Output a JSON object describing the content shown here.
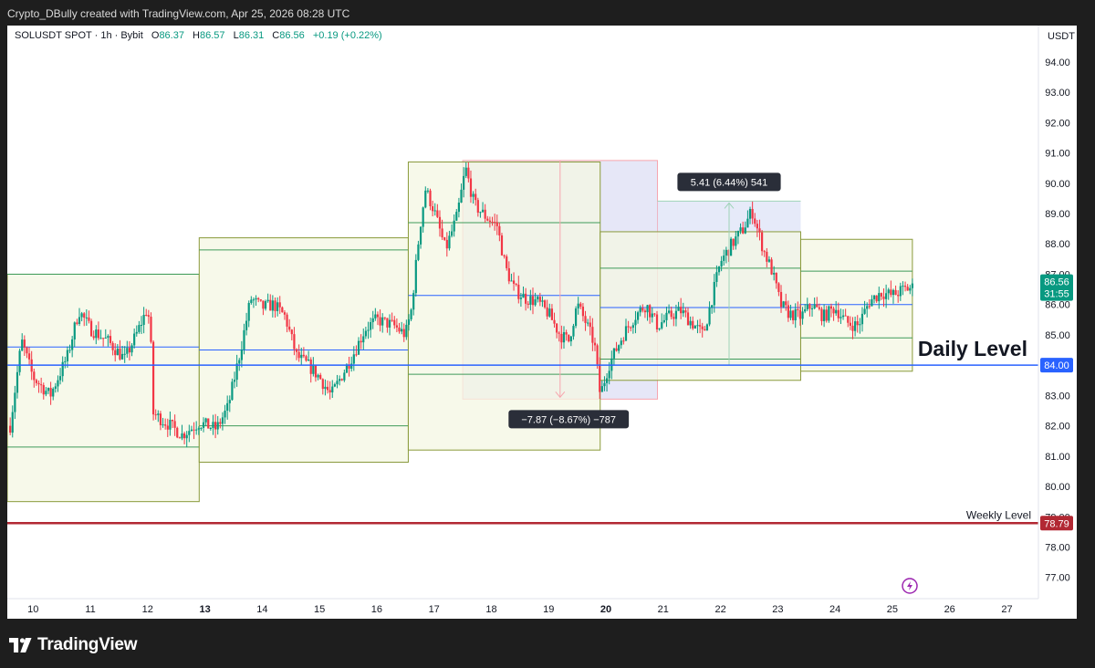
{
  "header": {
    "attribution": "Crypto_DBully created with TradingView.com, Apr 25, 2026 08:28 UTC"
  },
  "legend": {
    "symbol": "SOLUSDT SPOT · 1h · Bybit",
    "open_label": "O",
    "open": "86.37",
    "high_label": "H",
    "high": "86.57",
    "low_label": "L",
    "low": "86.31",
    "close_label": "C",
    "close": "86.56",
    "change": "+0.19 (+0.22%)"
  },
  "footer": {
    "brand": "TradingView"
  },
  "colors": {
    "up": "#089981",
    "down": "#f23645",
    "daily_level": "#2962ff",
    "weekly_level": "#b22833",
    "basis": "#2962ff",
    "band": "#8a9a3b",
    "short_box": "#d1d4f0",
    "long_box": "#d6dcf5"
  },
  "chart_data": {
    "type": "candlestick",
    "currency_label": "USDT",
    "y_ticks": [
      "94.00",
      "93.00",
      "92.00",
      "91.00",
      "90.00",
      "89.00",
      "88.00",
      "87.00",
      "86.00",
      "85.00",
      "84.00",
      "83.00",
      "82.00",
      "81.00",
      "80.00",
      "79.00",
      "78.00",
      "77.00"
    ],
    "ylim": [
      76.3,
      95.2
    ],
    "x_ticks": [
      {
        "day": 10,
        "label": "10"
      },
      {
        "day": 11,
        "label": "11"
      },
      {
        "day": 12,
        "label": "12"
      },
      {
        "day": 13,
        "label": "13",
        "bold": true
      },
      {
        "day": 14,
        "label": "14"
      },
      {
        "day": 15,
        "label": "15"
      },
      {
        "day": 16,
        "label": "16"
      },
      {
        "day": 17,
        "label": "17"
      },
      {
        "day": 18,
        "label": "18"
      },
      {
        "day": 19,
        "label": "19"
      },
      {
        "day": 20,
        "label": "20",
        "bold": true
      },
      {
        "day": 21,
        "label": "21"
      },
      {
        "day": 22,
        "label": "22"
      },
      {
        "day": 23,
        "label": "23"
      },
      {
        "day": 24,
        "label": "24"
      },
      {
        "day": 25,
        "label": "25"
      },
      {
        "day": 26,
        "label": "26"
      },
      {
        "day": 27,
        "label": "27"
      }
    ],
    "xlim": [
      9.55,
      27.55
    ],
    "price_path": [
      [
        9.6,
        82.0
      ],
      [
        9.8,
        84.8
      ],
      [
        10.0,
        83.6
      ],
      [
        10.3,
        83.0
      ],
      [
        10.6,
        84.3
      ],
      [
        10.8,
        85.8
      ],
      [
        11.0,
        85.2
      ],
      [
        11.3,
        84.8
      ],
      [
        11.6,
        84.2
      ],
      [
        11.8,
        85.0
      ],
      [
        12.0,
        85.9
      ],
      [
        12.05,
        85.0
      ],
      [
        12.1,
        82.4
      ],
      [
        12.4,
        82.0
      ],
      [
        12.6,
        81.7
      ],
      [
        12.9,
        82.1
      ],
      [
        13.2,
        81.9
      ],
      [
        13.4,
        82.6
      ],
      [
        13.6,
        84.3
      ],
      [
        13.8,
        86.2
      ],
      [
        14.0,
        85.9
      ],
      [
        14.2,
        86.0
      ],
      [
        14.4,
        85.6
      ],
      [
        14.6,
        84.3
      ],
      [
        14.8,
        84.0
      ],
      [
        15.0,
        83.6
      ],
      [
        15.2,
        83.0
      ],
      [
        15.4,
        83.7
      ],
      [
        15.6,
        84.4
      ],
      [
        15.8,
        85.2
      ],
      [
        16.0,
        85.5
      ],
      [
        16.3,
        85.3
      ],
      [
        16.5,
        85.0
      ],
      [
        16.6,
        85.8
      ],
      [
        16.75,
        88.5
      ],
      [
        16.85,
        89.8
      ],
      [
        17.0,
        89.1
      ],
      [
        17.2,
        87.8
      ],
      [
        17.4,
        88.9
      ],
      [
        17.55,
        90.5
      ],
      [
        17.7,
        89.3
      ],
      [
        17.9,
        88.9
      ],
      [
        18.1,
        88.6
      ],
      [
        18.25,
        87.2
      ],
      [
        18.4,
        86.5
      ],
      [
        18.6,
        86.2
      ],
      [
        18.8,
        86.1
      ],
      [
        19.0,
        85.7
      ],
      [
        19.2,
        85.0
      ],
      [
        19.35,
        84.8
      ],
      [
        19.5,
        86.0
      ],
      [
        19.65,
        85.4
      ],
      [
        19.8,
        84.7
      ],
      [
        19.9,
        83.0
      ],
      [
        20.05,
        84.0
      ],
      [
        20.3,
        85.0
      ],
      [
        20.5,
        85.6
      ],
      [
        20.7,
        86.0
      ],
      [
        20.9,
        85.3
      ],
      [
        21.1,
        85.6
      ],
      [
        21.3,
        85.8
      ],
      [
        21.5,
        85.4
      ],
      [
        21.7,
        85.0
      ],
      [
        21.85,
        86.2
      ],
      [
        22.0,
        87.4
      ],
      [
        22.2,
        88.0
      ],
      [
        22.4,
        88.5
      ],
      [
        22.55,
        89.1
      ],
      [
        22.75,
        87.8
      ],
      [
        22.9,
        87.1
      ],
      [
        23.05,
        86.0
      ],
      [
        23.2,
        85.7
      ],
      [
        23.4,
        85.6
      ],
      [
        23.6,
        86.0
      ],
      [
        23.8,
        85.6
      ],
      [
        24.0,
        85.9
      ],
      [
        24.2,
        85.4
      ],
      [
        24.4,
        85.3
      ],
      [
        24.6,
        86.1
      ],
      [
        24.8,
        86.4
      ],
      [
        25.0,
        86.3
      ],
      [
        25.2,
        86.5
      ],
      [
        25.35,
        86.56
      ]
    ],
    "bollinger_segments": [
      {
        "x": [
          9.55,
          12.9
        ],
        "upper": 87.0,
        "basis": 84.6,
        "lower": 81.3,
        "outer_upper": 87.0,
        "outer_lower": 79.5
      },
      {
        "x": [
          12.9,
          16.55
        ],
        "upper": 87.8,
        "basis": 84.5,
        "lower": 82.0,
        "outer_upper": 88.2,
        "outer_lower": 80.8
      },
      {
        "x": [
          16.55,
          19.9
        ],
        "upper": 88.7,
        "basis": 86.3,
        "lower": 83.7,
        "outer_upper": 90.7,
        "outer_lower": 81.2
      },
      {
        "x": [
          19.9,
          23.4
        ],
        "upper": 87.2,
        "basis": 85.9,
        "lower": 84.2,
        "outer_upper": 88.4,
        "outer_lower": 83.5
      },
      {
        "x": [
          23.4,
          25.35
        ],
        "upper": 87.1,
        "basis": 86.0,
        "lower": 84.9,
        "outer_upper": 88.15,
        "outer_lower": 83.8
      }
    ],
    "levels": [
      {
        "name": "Daily Level",
        "price": 84.0,
        "label": "84.00"
      },
      {
        "name": "Weekly Level",
        "price": 78.79,
        "label": "78.79"
      }
    ],
    "last_price": {
      "price": "86.56",
      "countdown": "31:55",
      "value": 86.56
    },
    "measure_short": {
      "x0": 17.5,
      "x1": 20.9,
      "y_top": 90.75,
      "y_bottom": 82.88,
      "label": "−7.87 (−8.67%) −787"
    },
    "measure_long": {
      "x0": 20.9,
      "x1": 23.4,
      "y_top": 89.41,
      "y_bottom": 84.0,
      "label": "5.41 (6.44%) 541"
    }
  }
}
